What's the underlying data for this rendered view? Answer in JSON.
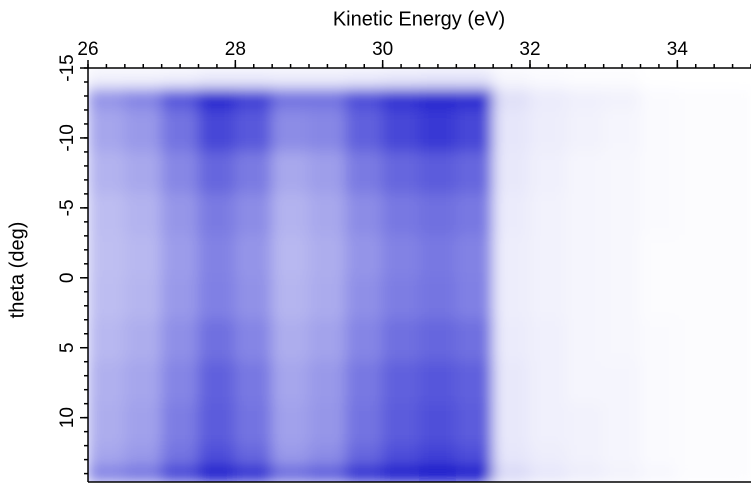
{
  "chart_data": {
    "type": "heatmap",
    "xlabel": "Kinetic Energy (eV)",
    "ylabel": "theta (deg)",
    "xlim": [
      26,
      35
    ],
    "ylim": [
      -15,
      14.6
    ],
    "y_reversed": true,
    "xticks": [
      26,
      28,
      30,
      32,
      34
    ],
    "yticks": [
      -15,
      -10,
      -5,
      0,
      5,
      10
    ],
    "xminorticks": [
      26,
      26.25,
      26.5,
      26.75,
      27,
      27.25,
      27.5,
      27.75,
      28,
      28.25,
      28.5,
      28.75,
      29,
      29.25,
      29.5,
      29.75,
      30,
      30.25,
      30.5,
      30.75,
      31,
      31.25,
      31.5,
      31.75,
      32,
      32.25,
      32.5,
      32.75,
      33,
      33.25,
      33.5,
      33.75,
      34,
      34.25,
      34.5,
      34.75,
      35
    ],
    "yminorticks": [
      -15,
      -14,
      -13,
      -12,
      -11,
      -10,
      -9,
      -8,
      -7,
      -6,
      -5,
      -4,
      -3,
      -2,
      -1,
      0,
      1,
      2,
      3,
      4,
      5,
      6,
      7,
      8,
      9,
      10,
      11,
      12,
      13,
      14
    ],
    "color": "#0000c8",
    "xbins": [
      26,
      26.5,
      27,
      27.5,
      28,
      28.5,
      29,
      29.5,
      30,
      30.5,
      31,
      31.5,
      32,
      32.5,
      33,
      33.5,
      34,
      34.5,
      35
    ],
    "ybins": [
      -15,
      -13.5,
      -12,
      -9,
      -6,
      -3,
      0,
      3,
      6,
      9,
      12,
      13.5,
      14.6
    ],
    "z": [
      [
        0.05,
        0.05,
        0.06,
        0.08,
        0.08,
        0.07,
        0.07,
        0.08,
        0.09,
        0.1,
        0.1,
        0.03,
        0.02,
        0.01,
        0.01,
        0,
        0,
        0
      ],
      [
        0.42,
        0.48,
        0.66,
        0.85,
        0.75,
        0.55,
        0.55,
        0.7,
        0.8,
        0.85,
        0.84,
        0.12,
        0.08,
        0.06,
        0.05,
        0.02,
        0.01,
        0.01
      ],
      [
        0.35,
        0.4,
        0.55,
        0.72,
        0.65,
        0.45,
        0.47,
        0.62,
        0.72,
        0.78,
        0.72,
        0.1,
        0.07,
        0.05,
        0.04,
        0.02,
        0.01,
        0.01
      ],
      [
        0.3,
        0.34,
        0.47,
        0.6,
        0.52,
        0.34,
        0.38,
        0.52,
        0.6,
        0.64,
        0.6,
        0.09,
        0.06,
        0.04,
        0.03,
        0.02,
        0.01,
        0.01
      ],
      [
        0.26,
        0.3,
        0.41,
        0.52,
        0.45,
        0.3,
        0.34,
        0.45,
        0.53,
        0.56,
        0.53,
        0.08,
        0.05,
        0.04,
        0.03,
        0.02,
        0.01,
        0.01
      ],
      [
        0.25,
        0.28,
        0.39,
        0.49,
        0.42,
        0.28,
        0.32,
        0.42,
        0.49,
        0.53,
        0.49,
        0.07,
        0.05,
        0.04,
        0.03,
        0.01,
        0.01,
        0.01
      ],
      [
        0.26,
        0.29,
        0.4,
        0.5,
        0.43,
        0.29,
        0.33,
        0.44,
        0.51,
        0.54,
        0.5,
        0.07,
        0.05,
        0.04,
        0.03,
        0.01,
        0.01,
        0.01
      ],
      [
        0.28,
        0.32,
        0.44,
        0.56,
        0.48,
        0.32,
        0.36,
        0.48,
        0.56,
        0.6,
        0.56,
        0.08,
        0.06,
        0.04,
        0.03,
        0.02,
        0.01,
        0.01
      ],
      [
        0.31,
        0.35,
        0.48,
        0.62,
        0.53,
        0.35,
        0.4,
        0.53,
        0.62,
        0.66,
        0.62,
        0.09,
        0.06,
        0.04,
        0.04,
        0.02,
        0.01,
        0.01
      ],
      [
        0.32,
        0.37,
        0.51,
        0.64,
        0.55,
        0.37,
        0.41,
        0.55,
        0.64,
        0.69,
        0.64,
        0.09,
        0.06,
        0.05,
        0.04,
        0.02,
        0.01,
        0.01
      ],
      [
        0.35,
        0.4,
        0.55,
        0.7,
        0.6,
        0.4,
        0.45,
        0.6,
        0.7,
        0.75,
        0.7,
        0.1,
        0.07,
        0.05,
        0.04,
        0.02,
        0.01,
        0.01
      ],
      [
        0.5,
        0.55,
        0.75,
        0.95,
        0.85,
        0.6,
        0.65,
        0.85,
        0.95,
        1,
        0.95,
        0.15,
        0.1,
        0.07,
        0.05,
        0.03,
        0.01,
        0.01
      ]
    ]
  }
}
